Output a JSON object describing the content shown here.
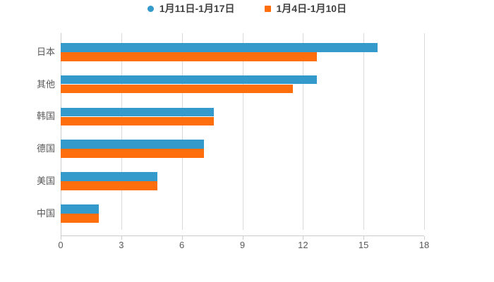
{
  "chart_data": {
    "type": "bar",
    "orientation": "horizontal",
    "title": "",
    "xlabel": "",
    "ylabel": "",
    "categories": [
      "日本",
      "其他",
      "韩国",
      "德国",
      "美国",
      "中国"
    ],
    "series": [
      {
        "name": "1月11日-1月17日",
        "color": "#3499cb",
        "marker": "circle",
        "values": [
          15.7,
          12.7,
          7.6,
          7.1,
          4.8,
          1.9
        ]
      },
      {
        "name": "1月4日-1月10日",
        "color": "#ff6e0c",
        "marker": "square",
        "values": [
          12.7,
          11.5,
          7.6,
          7.1,
          4.8,
          1.9
        ]
      }
    ],
    "xlim": [
      0,
      18
    ],
    "x_ticks": [
      "0",
      "3",
      "6",
      "9",
      "12",
      "15",
      "18"
    ],
    "grid": true,
    "legend_position": "top-center"
  },
  "styles": {
    "background": "#ffffff",
    "grid_color": "#d9d9d9",
    "axis_color": "#cccccc",
    "tick_label_color": "#595959",
    "category_label_color": "#595959",
    "legend_text_color": "#404040"
  }
}
